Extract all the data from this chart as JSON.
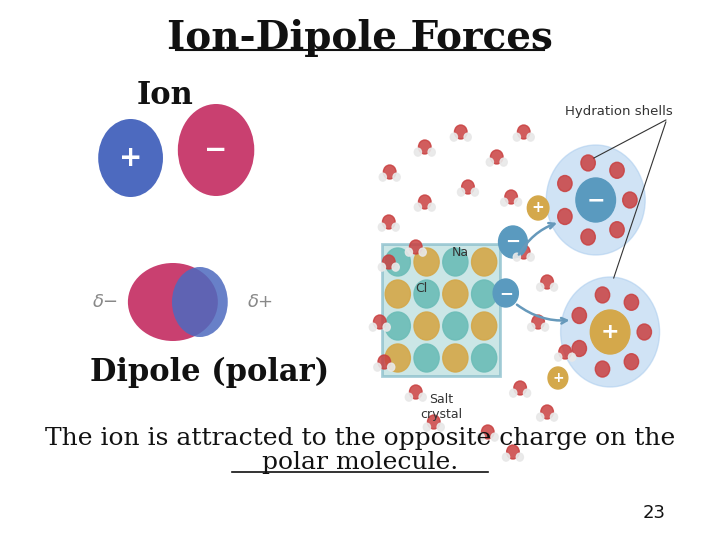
{
  "title": "Ion-Dipole Forces",
  "label_ion": "Ion",
  "label_dipole": "Dipole (polar)",
  "caption_line1": "The ion is attracted to the opposite charge on the",
  "caption_line2": "polar molecule.",
  "page_num": "23",
  "bg_color": "#ffffff",
  "title_fontsize": 28,
  "ion_label_fontsize": 22,
  "dipole_label_fontsize": 22,
  "caption_fontsize": 18,
  "page_fontsize": 13,
  "plus_ion_color": "#4d6abf",
  "minus_ion_color": "#c94070",
  "delta_text_color": "#888888",
  "teal_color": "#6dbdb8",
  "gold_color": "#d4a84b",
  "shell_color": "#aaccee",
  "water_red": "#c94040",
  "water_white": "#e8e8e8",
  "arrow_color": "#6699bb",
  "label_color": "#333333"
}
